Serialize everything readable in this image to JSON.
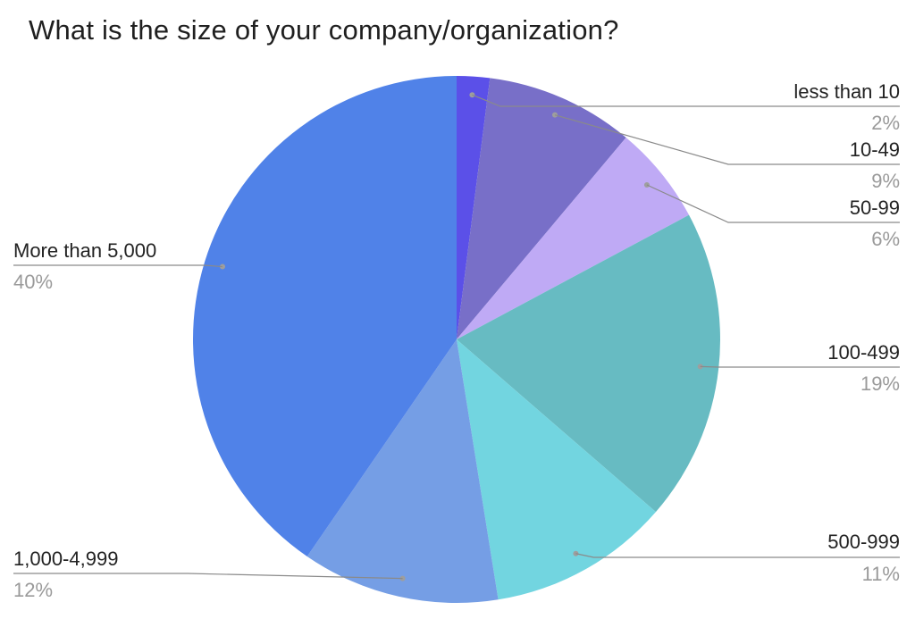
{
  "chart_data": {
    "type": "pie",
    "title": "What is the size of your company/organization?",
    "slices": [
      {
        "label": "less than 10",
        "value": 2,
        "percent_label": "2%",
        "color": "#5b50e8"
      },
      {
        "label": "10-49",
        "value": 9,
        "percent_label": "9%",
        "color": "#786fc8"
      },
      {
        "label": "50-99",
        "value": 6,
        "percent_label": "6%",
        "color": "#bfaaf5"
      },
      {
        "label": "100-499",
        "value": 19,
        "percent_label": "19%",
        "color": "#67bbc2"
      },
      {
        "label": "500-999",
        "value": 11,
        "percent_label": "11%",
        "color": "#72d5e0"
      },
      {
        "label": "1,000-4,999",
        "value": 12,
        "percent_label": "12%",
        "color": "#759ee5"
      },
      {
        "label": "More than 5,000",
        "value": 40,
        "percent_label": "40%",
        "color": "#5082e8"
      }
    ],
    "start_angle": "12 o'clock",
    "direction": "clockwise",
    "legend": "none"
  }
}
